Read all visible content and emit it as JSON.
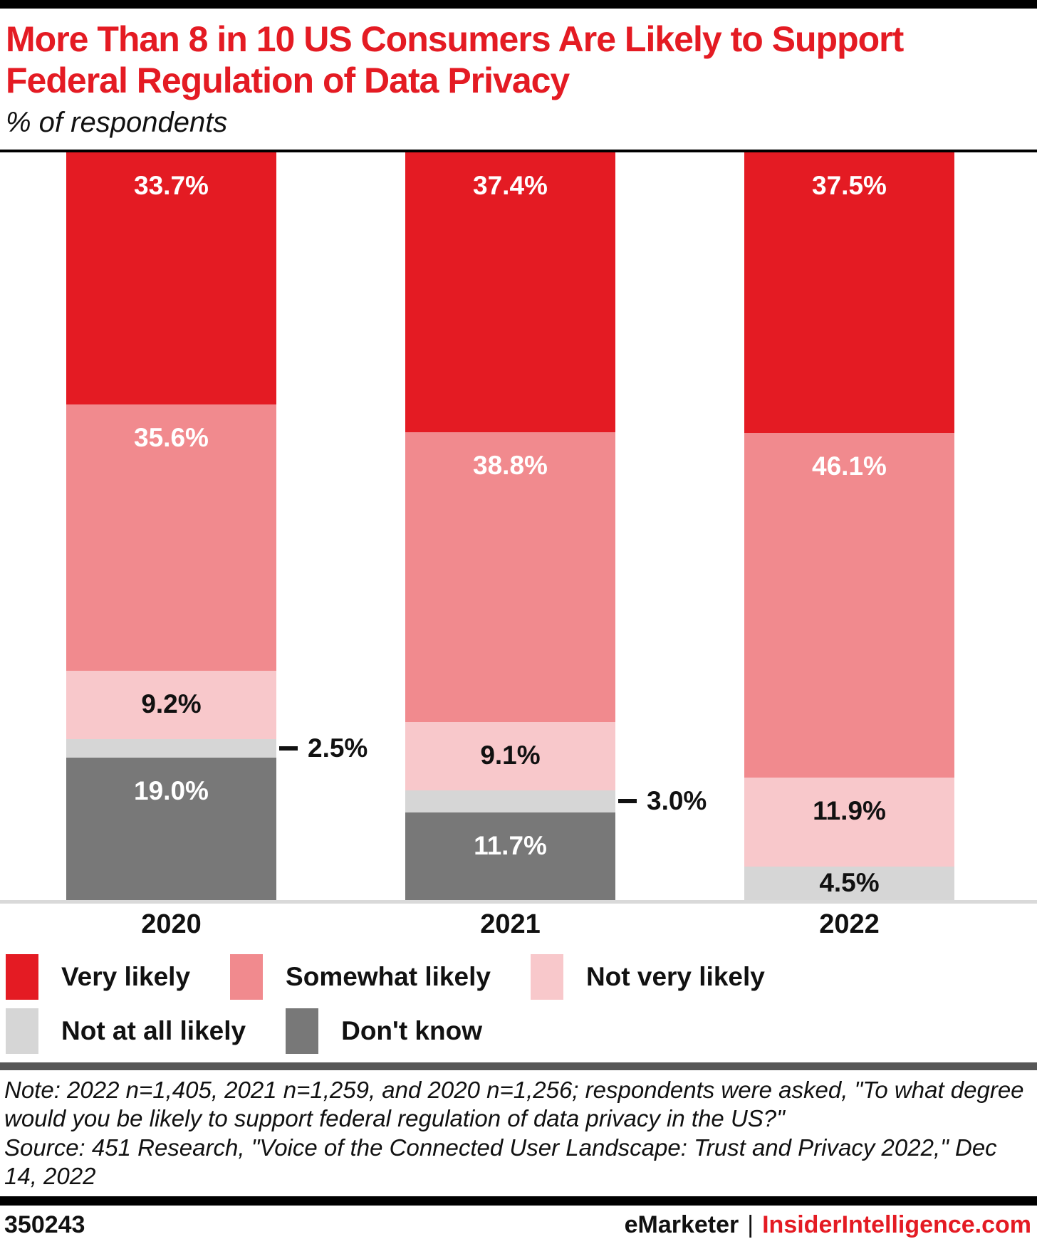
{
  "header": {
    "title_lines": [
      "More Than 8 in 10 US Consumers Are Likely to Support",
      "Federal Regulation of Data Privacy"
    ],
    "subtitle": "% of respondents"
  },
  "chart_data": {
    "type": "bar",
    "stacked": true,
    "unit": "%",
    "title": "More Than 8 in 10 US Consumers Are Likely to Support Federal Regulation of Data Privacy",
    "subtitle": "% of respondents",
    "ylim": [
      0,
      100
    ],
    "grid": false,
    "categories": [
      "2020",
      "2021",
      "2022"
    ],
    "series": [
      {
        "name": "Very likely",
        "color": "#e41b23",
        "label_color": "#ffffff",
        "values": [
          33.7,
          37.4,
          37.5
        ]
      },
      {
        "name": "Somewhat likely",
        "color": "#f18a8e",
        "label_color": "#ffffff",
        "values": [
          35.6,
          38.8,
          46.1
        ]
      },
      {
        "name": "Not very likely",
        "color": "#f8c8cb",
        "label_color": "#111111",
        "values": [
          9.2,
          9.1,
          11.9
        ]
      },
      {
        "name": "Not at all likely",
        "color": "#d6d6d6",
        "label_color": "#111111",
        "values": [
          2.5,
          3.0,
          4.5
        ],
        "callout": [
          true,
          true,
          false
        ]
      },
      {
        "name": "Don't know",
        "color": "#787878",
        "label_color": "#ffffff",
        "values": [
          19.0,
          11.7,
          null
        ]
      }
    ],
    "legend_position": "bottom",
    "legend_rows": [
      [
        0,
        1,
        2
      ],
      [
        3,
        4
      ]
    ]
  },
  "note": "Note: 2022 n=1,405, 2021 n=1,259, and 2020 n=1,256; respondents were asked, \"To what degree would you be likely to support federal regulation of data privacy in the US?\"",
  "source": "Source: 451 Research, \"Voice of the Connected User Landscape: Trust and Privacy 2022,\" Dec 14, 2022",
  "footer": {
    "chart_id": "350243",
    "brand": "eMarketer",
    "separator": "|",
    "site": "InsiderIntelligence.com"
  }
}
